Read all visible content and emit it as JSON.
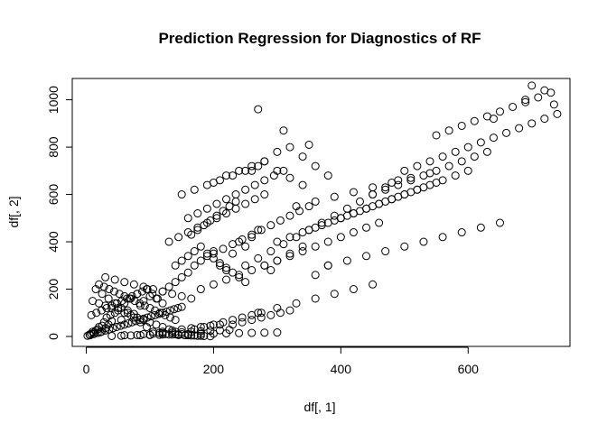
{
  "chart_data": {
    "type": "scatter",
    "title": "Prediction Regression for Diagnostics of RF",
    "xlabel": "df[, 1]",
    "ylabel": "df[, 2]",
    "xlim": [
      -22,
      760
    ],
    "ylim": [
      -42,
      1090
    ],
    "x_ticks": [
      0,
      200,
      400,
      600
    ],
    "y_ticks": [
      0,
      200,
      400,
      600,
      800,
      1000
    ],
    "x_tick_labels": [
      "0",
      "200",
      "400",
      "600"
    ],
    "y_tick_labels": [
      "0",
      "200",
      "400",
      "600",
      "800",
      "1000"
    ],
    "grid": false,
    "legend": "none",
    "series": [
      {
        "x": [
          2,
          5,
          8,
          10,
          12,
          15,
          18,
          20,
          22,
          25,
          28,
          30,
          32,
          35,
          38,
          40,
          45,
          50,
          55,
          60,
          65,
          70,
          75,
          80,
          85,
          90,
          95,
          100,
          110,
          120,
          130,
          140,
          150,
          160,
          170,
          180,
          190,
          200,
          210,
          220,
          230,
          240,
          250,
          260,
          270,
          280,
          290,
          300,
          320,
          340,
          360,
          380,
          6,
          12,
          18,
          24,
          30,
          36,
          42,
          48,
          54,
          60,
          66,
          72,
          78,
          84,
          90,
          96,
          102,
          108,
          114,
          120,
          126,
          132,
          138,
          144,
          150,
          10,
          20,
          30,
          40,
          50,
          60,
          70,
          80,
          90,
          100,
          110,
          120,
          130,
          140,
          150,
          160,
          170,
          180,
          15,
          25,
          35,
          45,
          55,
          65,
          75,
          85,
          95,
          105,
          115,
          125,
          135,
          145,
          155,
          165,
          175,
          185,
          195,
          20,
          28,
          36,
          44,
          52,
          60,
          68,
          76,
          84,
          92,
          100,
          108,
          116,
          124,
          132,
          140,
          8,
          16,
          24,
          32,
          40,
          48,
          56,
          64,
          72,
          80,
          88,
          96,
          104,
          112,
          120,
          30,
          45,
          60,
          75,
          90,
          105,
          120,
          135,
          150,
          165,
          140,
          150,
          160,
          170,
          180,
          190,
          200,
          210,
          220,
          230,
          240,
          250,
          130,
          145,
          160,
          175,
          190,
          205,
          220,
          235,
          250,
          265,
          280,
          160,
          175,
          190,
          205,
          220,
          235,
          250,
          265,
          280,
          295,
          310,
          200,
          215,
          230,
          245,
          260,
          275,
          290,
          305,
          320,
          335,
          350,
          180,
          200,
          220,
          240,
          260,
          280,
          300,
          320,
          340,
          360,
          380,
          400,
          420,
          440,
          460,
          250,
          270,
          290,
          310,
          330,
          350,
          370,
          390,
          410,
          430,
          450,
          470,
          490,
          300,
          320,
          340,
          360,
          380,
          400,
          420,
          440,
          460,
          480,
          500,
          520,
          350,
          370,
          390,
          410,
          430,
          450,
          470,
          490,
          510,
          530,
          550,
          400,
          420,
          440,
          460,
          480,
          500,
          520,
          540,
          560,
          580,
          600,
          450,
          470,
          490,
          510,
          530,
          550,
          570,
          590,
          610,
          630,
          500,
          520,
          540,
          560,
          580,
          600,
          620,
          640,
          660,
          680,
          700,
          720,
          550,
          570,
          590,
          610,
          630,
          650,
          670,
          690,
          710,
          730,
          260,
          280,
          300,
          320,
          340,
          360,
          380,
          200,
          220,
          240,
          260,
          280,
          300,
          320,
          340,
          150,
          170,
          190,
          210,
          230,
          250,
          270,
          270,
          300,
          330,
          360,
          390,
          420,
          450,
          230,
          245,
          260,
          275,
          290,
          305,
          320,
          170,
          185,
          200,
          215,
          230,
          245,
          260,
          275,
          120,
          135,
          150,
          165,
          180,
          195,
          210,
          90,
          105,
          120,
          135,
          150,
          165,
          180,
          195,
          210,
          225,
          60,
          80,
          100,
          120,
          140,
          160,
          180,
          200,
          220,
          240,
          260,
          280,
          300,
          40,
          55,
          70,
          85,
          100,
          115,
          130,
          145,
          160,
          270,
          310,
          350,
          380,
          410,
          440,
          470,
          500,
          530,
          560,
          590,
          620,
          650,
          330,
          360,
          390,
          420,
          450,
          480,
          510,
          540,
          700,
          720,
          735,
          740,
          690,
          640,
          165,
          175,
          185,
          195,
          205,
          215,
          225,
          235
        ],
        "y": [
          3,
          8,
          12,
          20,
          15,
          25,
          30,
          40,
          18,
          45,
          60,
          35,
          80,
          50,
          90,
          65,
          100,
          120,
          70,
          140,
          110,
          160,
          95,
          180,
          130,
          150,
          200,
          170,
          160,
          190,
          210,
          230,
          250,
          270,
          300,
          320,
          340,
          360,
          300,
          280,
          350,
          400,
          380,
          420,
          450,
          300,
          280,
          320,
          350,
          380,
          260,
          300,
          5,
          10,
          15,
          20,
          25,
          30,
          35,
          40,
          45,
          50,
          55,
          60,
          65,
          70,
          75,
          80,
          85,
          90,
          95,
          100,
          105,
          110,
          115,
          120,
          125,
          150,
          140,
          130,
          120,
          110,
          100,
          90,
          80,
          70,
          60,
          50,
          40,
          30,
          20,
          10,
          5,
          4,
          3,
          200,
          180,
          160,
          140,
          120,
          100,
          80,
          60,
          40,
          20,
          15,
          10,
          8,
          6,
          5,
          4,
          3,
          2,
          1,
          220,
          210,
          200,
          190,
          180,
          170,
          160,
          150,
          140,
          130,
          120,
          110,
          100,
          90,
          80,
          70,
          90,
          100,
          110,
          120,
          130,
          140,
          150,
          160,
          170,
          180,
          190,
          200,
          180,
          160,
          140,
          250,
          240,
          230,
          220,
          210,
          200,
          190,
          180,
          170,
          160,
          300,
          320,
          340,
          360,
          380,
          350,
          330,
          310,
          290,
          270,
          250,
          230,
          400,
          420,
          440,
          460,
          480,
          500,
          520,
          540,
          560,
          580,
          600,
          500,
          520,
          540,
          560,
          580,
          600,
          620,
          640,
          660,
          680,
          700,
          350,
          370,
          390,
          410,
          430,
          450,
          470,
          490,
          510,
          530,
          550,
          200,
          220,
          240,
          260,
          280,
          300,
          320,
          340,
          360,
          380,
          400,
          420,
          440,
          460,
          480,
          300,
          330,
          360,
          390,
          420,
          450,
          480,
          510,
          540,
          570,
          600,
          630,
          660,
          400,
          420,
          440,
          460,
          480,
          500,
          520,
          540,
          560,
          580,
          600,
          620,
          450,
          470,
          490,
          510,
          530,
          550,
          570,
          590,
          610,
          630,
          650,
          500,
          520,
          540,
          560,
          580,
          600,
          620,
          640,
          660,
          680,
          700,
          600,
          620,
          640,
          660,
          680,
          700,
          720,
          740,
          760,
          780,
          700,
          720,
          740,
          760,
          780,
          800,
          820,
          840,
          860,
          880,
          900,
          920,
          850,
          870,
          890,
          910,
          930,
          950,
          970,
          990,
          1010,
          1030,
          700,
          740,
          780,
          800,
          760,
          720,
          680,
          650,
          680,
          700,
          720,
          740,
          700,
          670,
          640,
          600,
          620,
          640,
          660,
          680,
          700,
          720,
          100,
          120,
          140,
          160,
          180,
          200,
          220,
          50,
          60,
          70,
          80,
          90,
          100,
          110,
          30,
          40,
          50,
          60,
          70,
          80,
          90,
          100,
          20,
          25,
          30,
          35,
          40,
          45,
          50,
          10,
          12,
          14,
          16,
          18,
          20,
          22,
          24,
          26,
          28,
          5,
          6,
          7,
          8,
          9,
          10,
          11,
          12,
          13,
          14,
          15,
          16,
          17,
          2,
          3,
          4,
          5,
          6,
          7,
          8,
          9,
          10,
          960,
          870,
          810,
          300,
          320,
          340,
          360,
          380,
          400,
          420,
          440,
          460,
          480,
          550,
          570,
          590,
          610,
          630,
          650,
          670,
          690,
          1060,
          1040,
          980,
          940,
          1000,
          920,
          430,
          450,
          470,
          490,
          510,
          530,
          550,
          570
        ]
      }
    ]
  }
}
